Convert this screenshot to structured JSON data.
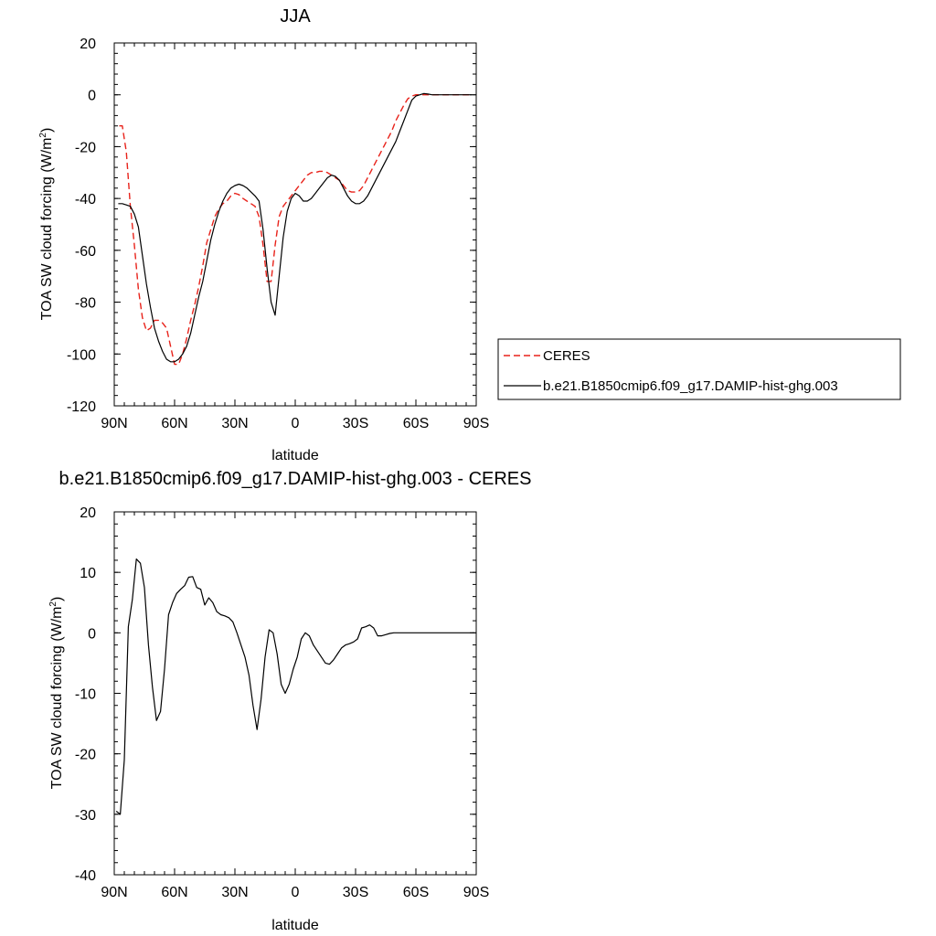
{
  "chart_data": [
    {
      "type": "line",
      "title": "JJA",
      "xlabel": "latitude",
      "ylabel": "TOA SW cloud forcing (W/m",
      "ylabel_sup": "2",
      "ylabel_close": ")",
      "xlim": [
        90,
        -90
      ],
      "ylim": [
        -120,
        20
      ],
      "x_ticks": [
        90,
        60,
        30,
        0,
        -30,
        -60,
        -90
      ],
      "x_tick_labels": [
        "90N",
        "60N",
        "30N",
        "0",
        "30S",
        "60S",
        "90S"
      ],
      "y_ticks": [
        20,
        0,
        -20,
        -40,
        -60,
        -80,
        -100,
        -120
      ],
      "y_tick_labels": [
        "20",
        "0",
        "-20",
        "-40",
        "-60",
        "-80",
        "-100",
        "-120"
      ],
      "legend_position": "right",
      "series": [
        {
          "name": "CERES",
          "color": "#e8221a",
          "dash": "dashed",
          "x": [
            87.5,
            86,
            84,
            82,
            80,
            78,
            76,
            74,
            72,
            70,
            68,
            66,
            64,
            62,
            60,
            58,
            56,
            54,
            52,
            50,
            48,
            46,
            44,
            42,
            40,
            38,
            36,
            34,
            32,
            30,
            28,
            26,
            24,
            22,
            20,
            18,
            16,
            14,
            12,
            10,
            8,
            6,
            4,
            2,
            0,
            -2,
            -4,
            -6,
            -8,
            -10,
            -12,
            -14,
            -16,
            -18,
            -20,
            -22,
            -24,
            -26,
            -28,
            -30,
            -32,
            -34,
            -36,
            -38,
            -40,
            -42,
            -44,
            -46,
            -48,
            -50,
            -52,
            -54,
            -56,
            -58,
            -60,
            -62,
            -64,
            -66,
            -68,
            -70,
            -72,
            -74,
            -76,
            -78,
            -80,
            -82,
            -84,
            -86,
            -88
          ],
          "y": [
            -12,
            -12,
            -22,
            -43,
            -58,
            -75,
            -86,
            -91,
            -90,
            -87,
            -87,
            -88,
            -90,
            -97,
            -104,
            -104,
            -100,
            -94,
            -87,
            -81,
            -74,
            -66,
            -57,
            -52,
            -47,
            -44,
            -42,
            -41,
            -39,
            -38,
            -38.5,
            -40,
            -41,
            -42,
            -43,
            -47,
            -58,
            -72,
            -72,
            -58,
            -47,
            -43,
            -41,
            -39,
            -37,
            -35,
            -33,
            -31,
            -30,
            -30,
            -29.5,
            -29.5,
            -30,
            -31,
            -32,
            -33,
            -35,
            -37,
            -37.5,
            -37.5,
            -37,
            -35,
            -32,
            -29,
            -26,
            -23,
            -20,
            -17,
            -14,
            -10,
            -7,
            -4,
            -1.5,
            -0.5,
            0,
            0,
            0,
            0,
            0,
            0,
            0,
            0,
            0,
            0,
            0,
            0,
            0,
            0,
            0
          ]
        },
        {
          "name": "b.e21.B1850cmip6.f09_g17.DAMIP-hist-ghg.003",
          "color": "#000000",
          "dash": "solid",
          "x": [
            88,
            86,
            84,
            82,
            80,
            78,
            76,
            74,
            72,
            70,
            68,
            66,
            64,
            62,
            60,
            58,
            56,
            54,
            52,
            50,
            48,
            46,
            44,
            42,
            40,
            38,
            36,
            34,
            32,
            30,
            28,
            26,
            24,
            22,
            20,
            18,
            16,
            14,
            12,
            10,
            8,
            6,
            4,
            2,
            0,
            -2,
            -4,
            -6,
            -8,
            -10,
            -12,
            -14,
            -16,
            -18,
            -20,
            -22,
            -24,
            -26,
            -28,
            -30,
            -32,
            -34,
            -36,
            -38,
            -40,
            -42,
            -44,
            -46,
            -48,
            -50,
            -52,
            -54,
            -56,
            -58,
            -60,
            -62,
            -64,
            -66,
            -68,
            -70,
            -72,
            -74,
            -76,
            -78,
            -80,
            -82,
            -84,
            -86,
            -88
          ],
          "y": [
            -42,
            -42,
            -42.5,
            -43,
            -46,
            -51,
            -62,
            -73,
            -82,
            -90,
            -95,
            -99,
            -102,
            -103,
            -103,
            -102,
            -100,
            -97,
            -92,
            -85,
            -78,
            -72,
            -64,
            -56,
            -50,
            -45,
            -41,
            -38,
            -36,
            -35,
            -34.5,
            -35,
            -36,
            -37.5,
            -39,
            -41,
            -52,
            -67,
            -80,
            -85,
            -70,
            -55,
            -45,
            -40,
            -38,
            -39,
            -41,
            -41,
            -40,
            -38,
            -36,
            -34,
            -32,
            -31,
            -31.5,
            -33,
            -36,
            -39,
            -41,
            -42,
            -42,
            -41,
            -39,
            -36,
            -33,
            -30,
            -27,
            -24,
            -21,
            -18,
            -14,
            -10,
            -6,
            -2,
            -0.5,
            0,
            0.5,
            0.3,
            0,
            0,
            0,
            0,
            0,
            0,
            0,
            0,
            0,
            0,
            0
          ]
        }
      ]
    },
    {
      "type": "line",
      "title": "b.e21.B1850cmip6.f09_g17.DAMIP-hist-ghg.003 - CERES",
      "xlabel": "latitude",
      "ylabel": "TOA SW cloud forcing (W/m",
      "ylabel_sup": "2",
      "ylabel_close": ")",
      "xlim": [
        90,
        -90
      ],
      "ylim": [
        -40,
        20
      ],
      "x_ticks": [
        90,
        60,
        30,
        0,
        -30,
        -60,
        -90
      ],
      "x_tick_labels": [
        "90N",
        "60N",
        "30N",
        "0",
        "30S",
        "60S",
        "90S"
      ],
      "y_ticks": [
        20,
        10,
        0,
        -10,
        -20,
        -30,
        -40
      ],
      "y_tick_labels": [
        "20",
        "10",
        "0",
        "-10",
        "-20",
        "-30",
        "-40"
      ],
      "series": [
        {
          "color": "#000000",
          "dash": "solid",
          "x": [
            89,
            87,
            85,
            83,
            81,
            79,
            77,
            75,
            73,
            71,
            69,
            67,
            65,
            63,
            61,
            59,
            57,
            55,
            53,
            51,
            49,
            47,
            45,
            43,
            41,
            39,
            37,
            35,
            33,
            31,
            29,
            27,
            25,
            23,
            21,
            19,
            17,
            15,
            13,
            11,
            9,
            7,
            5,
            3,
            1,
            -1,
            -3,
            -5,
            -7,
            -9,
            -11,
            -13,
            -15,
            -17,
            -19,
            -21,
            -23,
            -25,
            -27,
            -29,
            -31,
            -33,
            -35,
            -37,
            -39,
            -41,
            -43,
            -45,
            -47,
            -49,
            -51,
            -53,
            -55,
            -57,
            -59,
            -61,
            -63,
            -65,
            -67,
            -69,
            -71,
            -73,
            -75,
            -77,
            -79,
            -81,
            -83,
            -85,
            -87,
            -89
          ],
          "y": [
            -29.5,
            -30,
            -21,
            1,
            5.5,
            12.2,
            11.5,
            7.5,
            -2,
            -9,
            -14.5,
            -13,
            -6,
            3,
            5,
            6.5,
            7.2,
            7.8,
            9.2,
            9.3,
            7.5,
            7.2,
            4.6,
            5.8,
            5.0,
            3.5,
            3.0,
            2.8,
            2.5,
            1.8,
            0,
            -2,
            -4,
            -7,
            -12,
            -16,
            -11,
            -4,
            0.5,
            0,
            -3.5,
            -8.5,
            -10,
            -8.5,
            -6,
            -4,
            -1,
            0,
            -0.5,
            -2,
            -3,
            -4,
            -5,
            -5.2,
            -4.5,
            -3.5,
            -2.5,
            -2,
            -1.8,
            -1.5,
            -1,
            0.8,
            1,
            1.3,
            0.8,
            -0.5,
            -0.5,
            -0.3,
            -0.1,
            0,
            0,
            0,
            0,
            0,
            0,
            0,
            0,
            0,
            0,
            0,
            0,
            0,
            0,
            0,
            0,
            0,
            0,
            0,
            0,
            0
          ]
        }
      ]
    }
  ]
}
